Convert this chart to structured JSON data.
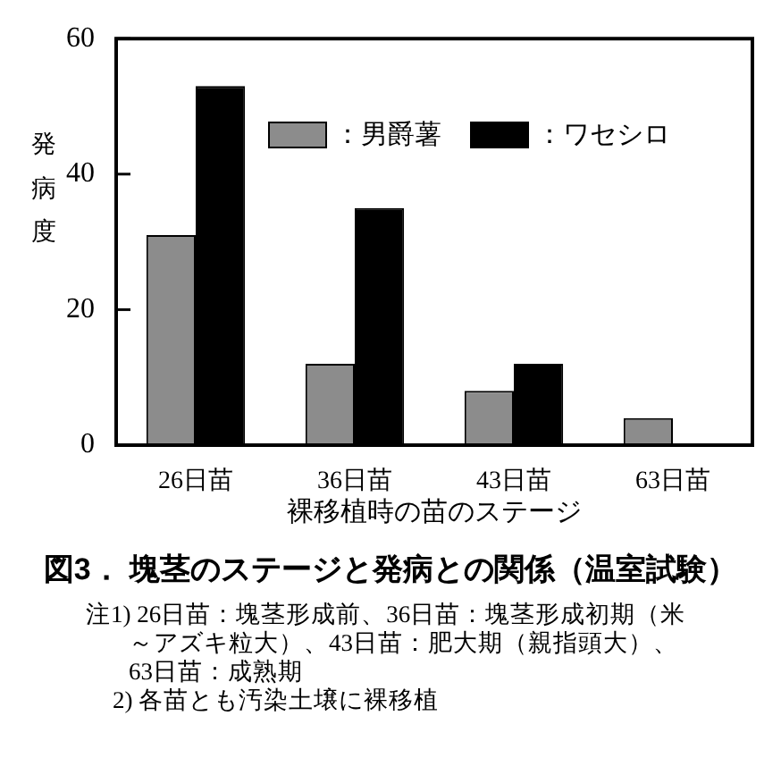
{
  "chart_data": {
    "type": "bar",
    "title": "図3． 塊茎のステージと発病との関係（温室試験）",
    "xlabel": "裸移植時の苗のステージ",
    "ylabel": "発病度",
    "categories": [
      "26日苗",
      "36日苗",
      "43日苗",
      "63日苗"
    ],
    "series": [
      {
        "name": "：男爵薯",
        "color": "#8c8c8c",
        "values": [
          31,
          12,
          8,
          4
        ]
      },
      {
        "name": "：ワセシロ",
        "color": "#000000",
        "values": [
          53,
          35,
          12,
          0
        ]
      }
    ],
    "ylim": [
      0,
      60
    ],
    "yticks": [
      0,
      20,
      40,
      60
    ],
    "grid": false,
    "legend": "top right",
    "annotations": [
      "注1) 26日苗：塊茎形成前、36日苗：塊茎形成初期（米～アズキ粒大）、43日苗：肥大期（親指頭大）、63日苗：成熟期",
      "2) 各苗とも汚染土壌に裸移植"
    ]
  }
}
